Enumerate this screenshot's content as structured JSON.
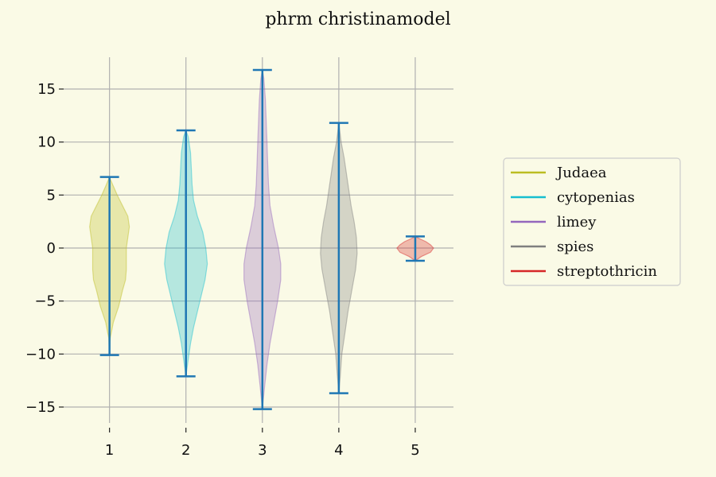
{
  "chart_data": {
    "type": "violin",
    "title": "phrm christinamodel",
    "xlabel": "",
    "ylabel": "",
    "x_ticks": [
      "1",
      "2",
      "3",
      "4",
      "5"
    ],
    "y_ticks": [
      15,
      10,
      5,
      0,
      -5,
      -10,
      -15
    ],
    "y_tick_labels": [
      "15",
      "10",
      "5",
      "0",
      "−5",
      "−10",
      "−15"
    ],
    "xlim": [
      0.4,
      5.5
    ],
    "ylim": [
      -16.5,
      18.0
    ],
    "grid": true,
    "legend_position": "right",
    "whisker_color": "#1f77b4",
    "series": [
      {
        "name": "Judaea",
        "x": 1,
        "color": "#bcbd22",
        "min": -10.1,
        "max": 6.7,
        "profile": [
          [
            -10.1,
            0.0
          ],
          [
            -8.5,
            0.01
          ],
          [
            -7.0,
            0.05
          ],
          [
            -5.5,
            0.12
          ],
          [
            -4.0,
            0.17
          ],
          [
            -3.0,
            0.21
          ],
          [
            -2.0,
            0.22
          ],
          [
            -1.0,
            0.22
          ],
          [
            0.0,
            0.22
          ],
          [
            1.0,
            0.24
          ],
          [
            2.0,
            0.26
          ],
          [
            3.0,
            0.24
          ],
          [
            4.0,
            0.17
          ],
          [
            5.0,
            0.1
          ],
          [
            6.0,
            0.04
          ],
          [
            6.7,
            0.0
          ]
        ]
      },
      {
        "name": "cytopenias",
        "x": 2,
        "color": "#17becf",
        "min": -12.1,
        "max": 11.1,
        "profile": [
          [
            -12.1,
            0.0
          ],
          [
            -10.5,
            0.03
          ],
          [
            -9.0,
            0.06
          ],
          [
            -7.5,
            0.1
          ],
          [
            -6.0,
            0.15
          ],
          [
            -4.5,
            0.2
          ],
          [
            -3.0,
            0.25
          ],
          [
            -1.5,
            0.28
          ],
          [
            0.0,
            0.26
          ],
          [
            1.5,
            0.22
          ],
          [
            3.0,
            0.15
          ],
          [
            4.5,
            0.1
          ],
          [
            6.0,
            0.08
          ],
          [
            7.5,
            0.07
          ],
          [
            9.0,
            0.06
          ],
          [
            10.5,
            0.03
          ],
          [
            11.1,
            0.0
          ]
        ]
      },
      {
        "name": "limey",
        "x": 3,
        "color": "#9467bd",
        "min": -15.2,
        "max": 16.8,
        "profile": [
          [
            -15.2,
            0.0
          ],
          [
            -13.0,
            0.03
          ],
          [
            -11.0,
            0.06
          ],
          [
            -9.0,
            0.1
          ],
          [
            -7.0,
            0.15
          ],
          [
            -5.0,
            0.2
          ],
          [
            -3.0,
            0.24
          ],
          [
            -1.5,
            0.24
          ],
          [
            0.0,
            0.21
          ],
          [
            2.0,
            0.15
          ],
          [
            4.0,
            0.1
          ],
          [
            6.0,
            0.08
          ],
          [
            8.0,
            0.07
          ],
          [
            10.0,
            0.06
          ],
          [
            12.0,
            0.05
          ],
          [
            14.0,
            0.04
          ],
          [
            16.0,
            0.02
          ],
          [
            16.8,
            0.0
          ]
        ]
      },
      {
        "name": "spies",
        "x": 4,
        "color": "#7f7f7f",
        "min": -13.7,
        "max": 11.8,
        "profile": [
          [
            -13.7,
            0.0
          ],
          [
            -12.0,
            0.02
          ],
          [
            -10.0,
            0.04
          ],
          [
            -8.0,
            0.08
          ],
          [
            -6.0,
            0.12
          ],
          [
            -4.0,
            0.17
          ],
          [
            -2.0,
            0.22
          ],
          [
            -0.5,
            0.24
          ],
          [
            1.0,
            0.23
          ],
          [
            2.5,
            0.2
          ],
          [
            4.0,
            0.16
          ],
          [
            5.5,
            0.13
          ],
          [
            7.0,
            0.1
          ],
          [
            8.5,
            0.07
          ],
          [
            10.0,
            0.03
          ],
          [
            11.8,
            0.0
          ]
        ]
      },
      {
        "name": "streptothricin",
        "x": 5,
        "color": "#d62728",
        "min": -1.2,
        "max": 1.1,
        "profile": [
          [
            -1.2,
            0.0
          ],
          [
            -0.8,
            0.08
          ],
          [
            -0.4,
            0.2
          ],
          [
            0.0,
            0.24
          ],
          [
            0.3,
            0.2
          ],
          [
            0.6,
            0.14
          ],
          [
            0.9,
            0.05
          ],
          [
            1.1,
            0.0
          ]
        ]
      }
    ]
  }
}
